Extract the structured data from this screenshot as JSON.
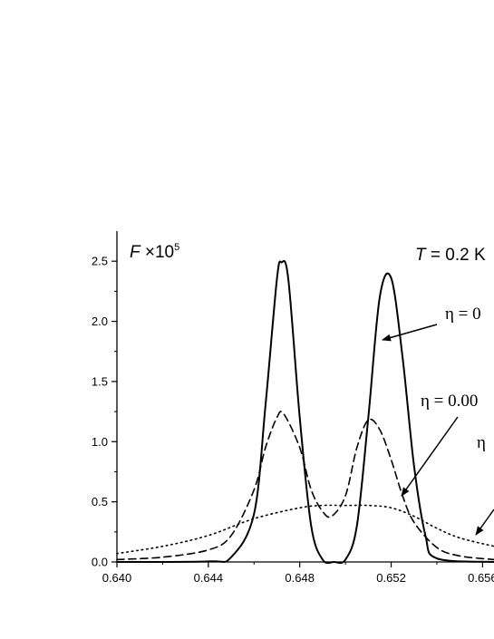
{
  "chart_data": {
    "type": "line",
    "title": "",
    "y_axis_label": {
      "italic": "F",
      "prefix": " ×10",
      "exponent": "5"
    },
    "temperature_label": {
      "italic": "T",
      "rest": " = 0.2 K"
    },
    "xlim": [
      0.64,
      0.6565
    ],
    "ylim": [
      0,
      2.75
    ],
    "x_ticks": [
      "0.640",
      "0.644",
      "0.648",
      "0.652",
      "0.656"
    ],
    "y_ticks": [
      "0.0",
      "0.5",
      "1.0",
      "1.5",
      "2.0",
      "2.5"
    ],
    "grid": false,
    "legend": "none",
    "annotations": [
      {
        "text": "η = 0",
        "series": "solid"
      },
      {
        "text": "η = 0.00",
        "series": "dashed"
      },
      {
        "text": "η",
        "series": "dotted"
      }
    ],
    "series": [
      {
        "style": "solid",
        "x": [
          0.64,
          0.644,
          0.645,
          0.646,
          0.6465,
          0.647,
          0.6472,
          0.6475,
          0.648,
          0.6485,
          0.649,
          0.6495,
          0.65,
          0.6505,
          0.651,
          0.6515,
          0.652,
          0.6525,
          0.653,
          0.6535,
          0.654,
          0.6565
        ],
        "y": [
          0.0,
          0.005,
          0.04,
          0.4,
          1.3,
          2.35,
          2.49,
          2.35,
          1.2,
          0.3,
          0.02,
          0.0,
          0.02,
          0.3,
          1.2,
          2.2,
          2.36,
          1.7,
          0.8,
          0.22,
          0.03,
          0.0
        ]
      },
      {
        "style": "dashed",
        "x": [
          0.64,
          0.642,
          0.644,
          0.645,
          0.646,
          0.6465,
          0.647,
          0.6473,
          0.648,
          0.6485,
          0.649,
          0.6494,
          0.65,
          0.6505,
          0.651,
          0.6515,
          0.652,
          0.6525,
          0.653,
          0.654,
          0.655,
          0.6565
        ],
        "y": [
          0.02,
          0.04,
          0.1,
          0.22,
          0.6,
          0.95,
          1.2,
          1.23,
          0.95,
          0.6,
          0.42,
          0.38,
          0.55,
          0.95,
          1.18,
          1.1,
          0.85,
          0.55,
          0.33,
          0.12,
          0.05,
          0.02
        ]
      },
      {
        "style": "dotted",
        "x": [
          0.64,
          0.642,
          0.644,
          0.646,
          0.648,
          0.649,
          0.65,
          0.651,
          0.652,
          0.653,
          0.654,
          0.655,
          0.6565
        ],
        "y": [
          0.07,
          0.13,
          0.22,
          0.36,
          0.45,
          0.47,
          0.47,
          0.47,
          0.45,
          0.38,
          0.28,
          0.2,
          0.13
        ]
      }
    ]
  }
}
